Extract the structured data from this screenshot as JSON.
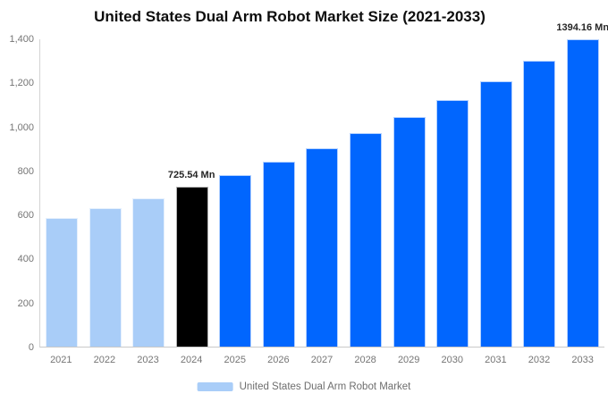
{
  "title": "United States Dual Arm Robot Market Size (2021-2033)",
  "legend": {
    "label": "United States Dual Arm Robot Market"
  },
  "y_axis": {
    "tick_labels": [
      "1,400",
      "1,200",
      "1,000",
      "800",
      "600",
      "400",
      "200",
      "0"
    ]
  },
  "colors": {
    "historical_bar": "#A9CDF8",
    "base_year_bar": "#000000",
    "forecast_bar": "#0166FE",
    "axis_text": "#757575",
    "data_label_text": "#262626",
    "legend_text": "#6E6E6E",
    "background": "#FFFFFF"
  },
  "chart_data": {
    "type": "bar",
    "title": "United States Dual Arm Robot Market Size (2021-2033)",
    "series_name": "United States Dual Arm Robot Market",
    "unit": "Mn",
    "categories": [
      "2021",
      "2022",
      "2023",
      "2024",
      "2025",
      "2026",
      "2027",
      "2028",
      "2029",
      "2030",
      "2031",
      "2032",
      "2033"
    ],
    "values": [
      583.6,
      627.5,
      674.7,
      725.54,
      780.2,
      838.9,
      902.1,
      970.0,
      1043.0,
      1121.6,
      1206.0,
      1296.8,
      1394.16
    ],
    "bar_roles": [
      "historical",
      "historical",
      "historical",
      "base_year",
      "forecast",
      "forecast",
      "forecast",
      "forecast",
      "forecast",
      "forecast",
      "forecast",
      "forecast",
      "forecast"
    ],
    "data_labels": [
      {
        "category": "2024",
        "text": "725.54 Mn"
      },
      {
        "category": "2033",
        "text": "1394.16 Mn"
      }
    ],
    "ylim": [
      0,
      1400
    ],
    "grid": false,
    "legend_position": "bottom",
    "xlabel": "",
    "ylabel": ""
  }
}
